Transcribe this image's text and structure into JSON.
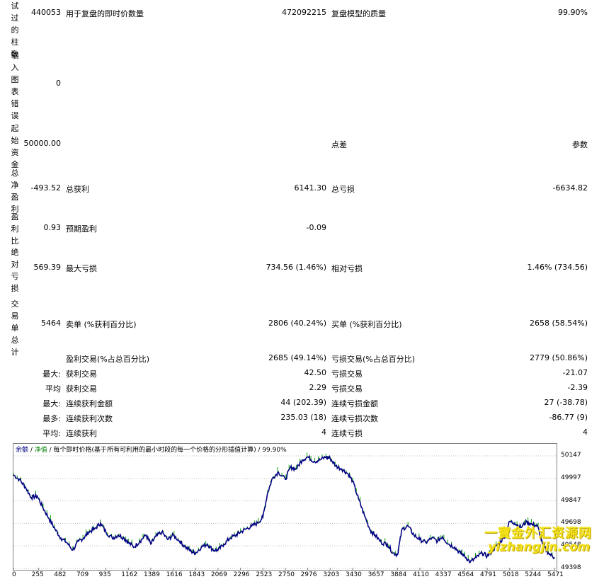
{
  "side_labels": [
    "试过的柱数",
    "输入图表错误",
    "起始资金",
    "总净盈利",
    "盈利比",
    "绝对亏损",
    "交易单总计"
  ],
  "rows": {
    "bars": {
      "left": "440053",
      "label1": "用于复盘的即时价数量",
      "value1": "472092215",
      "label2": "复盘模型的质量",
      "value2": "99.90%"
    },
    "errors": {
      "left": "0"
    },
    "deposit": {
      "left": "50000.00",
      "label2": "点差",
      "value2": "参数"
    },
    "net": {
      "left": "-493.52",
      "label1": "总获利",
      "value1": "6141.30",
      "label2": "总亏损",
      "value2": "-6634.82"
    },
    "pf": {
      "left": "0.93",
      "label1": "预期盈利",
      "value1": "-0.09"
    },
    "dd": {
      "left": "569.39",
      "label1": "最大亏损",
      "value1": "734.56 (1.46%)",
      "label2": "相对亏损",
      "value2": "1.46% (734.56)"
    },
    "trades": {
      "left": "5464",
      "label1": "卖单 (%获利百分比)",
      "value1": "2806 (40.24%)",
      "label2": "买单 (%获利百分比)",
      "value2": "2658 (58.54%)"
    },
    "pct": {
      "label1": "盈利交易(%占总百分比)",
      "value1": "2685 (49.14%)",
      "label2": "亏损交易(%占总百分比)",
      "value2": "2779 (50.86%)"
    },
    "largest": {
      "prefix": "最大:",
      "label1": "获利交易",
      "value1": "42.50",
      "label2": "亏损交易",
      "value2": "-21.07"
    },
    "average": {
      "prefix": "平均",
      "label1": "获利交易",
      "value1": "2.29",
      "label2": "亏损交易",
      "value2": "-2.39"
    },
    "maxcons": {
      "prefix": "最大:",
      "label1": "连续获利金额",
      "value1": "44 (202.39)",
      "label2": "连续亏损金额",
      "value2": "27 (-38.78)"
    },
    "maxconsp": {
      "prefix": "最多:",
      "label1": "连续获利次数",
      "value1": "235.03 (18)",
      "label2": "连续亏损次数",
      "value2": "-86.77 (9)"
    },
    "avgcons": {
      "prefix": "平均:",
      "label1": "连续获利",
      "value1": "4",
      "label2": "连续亏损",
      "value2": "4"
    }
  },
  "chart_legend": {
    "balance": "余额",
    "sep1": " / ",
    "equity": "净值",
    "rest": " / 每个即时价格(基于所有可利用的最小时段的每一个价格的分形插值计算) / 99.90%"
  },
  "watermark": {
    "line1": "一寶金外汇资源网",
    "line2": "yizhangjin.com"
  },
  "chart_data": {
    "type": "line",
    "x_ticks": [
      0,
      255,
      482,
      709,
      935,
      1162,
      1389,
      1616,
      1843,
      2069,
      2296,
      2523,
      2750,
      2976,
      3203,
      3430,
      3657,
      3884,
      4110,
      4337,
      4564,
      4791,
      5018,
      5244,
      5471
    ],
    "y_ticks": [
      50147,
      49997,
      49847,
      49698,
      49548,
      49398
    ],
    "ylim": [
      49398,
      50200
    ],
    "xlim": [
      0,
      5471
    ],
    "colors": {
      "balance": "#000080",
      "equity": "#00a000"
    },
    "series": [
      {
        "name": "余额",
        "x": [
          0,
          60,
          120,
          180,
          240,
          300,
          360,
          420,
          480,
          540,
          600,
          660,
          709,
          760,
          820,
          880,
          935,
          1000,
          1060,
          1120,
          1162,
          1220,
          1280,
          1340,
          1389,
          1440,
          1500,
          1560,
          1616,
          1680,
          1740,
          1800,
          1843,
          1900,
          1960,
          2020,
          2069,
          2130,
          2190,
          2250,
          2296,
          2350,
          2410,
          2470,
          2523,
          2570,
          2620,
          2680,
          2750,
          2800,
          2860,
          2920,
          2976,
          3040,
          3100,
          3160,
          3203,
          3260,
          3320,
          3380,
          3430,
          3490,
          3550,
          3610,
          3657,
          3720,
          3780,
          3840,
          3884,
          3930,
          3990,
          4050,
          4110,
          4170,
          4230,
          4290,
          4337,
          4400,
          4460,
          4520,
          4564,
          4620,
          4680,
          4740,
          4791,
          4850,
          4900,
          4960,
          5018,
          5070,
          5130,
          5190,
          5244,
          5300,
          5350,
          5410,
          5471
        ],
        "values": [
          50020,
          49990,
          49940,
          49870,
          49880,
          49800,
          49730,
          49660,
          49600,
          49570,
          49520,
          49580,
          49600,
          49640,
          49660,
          49700,
          49640,
          49600,
          49620,
          49600,
          49570,
          49540,
          49580,
          49620,
          49560,
          49610,
          49640,
          49590,
          49620,
          49580,
          49540,
          49510,
          49500,
          49540,
          49560,
          49520,
          49520,
          49560,
          49600,
          49620,
          49640,
          49660,
          49680,
          49700,
          49740,
          49900,
          50000,
          50040,
          49990,
          50070,
          50060,
          50120,
          50140,
          50110,
          50120,
          50140,
          50130,
          50080,
          50060,
          50030,
          49980,
          49860,
          49750,
          49650,
          49620,
          49570,
          49560,
          49500,
          49490,
          49660,
          49680,
          49620,
          49590,
          49570,
          49600,
          49580,
          49610,
          49560,
          49540,
          49500,
          49480,
          49440,
          49470,
          49500,
          49480,
          49520,
          49560,
          49600,
          49710,
          49700,
          49670,
          49710,
          49690,
          49680,
          49560,
          49500,
          49470
        ]
      }
    ]
  }
}
